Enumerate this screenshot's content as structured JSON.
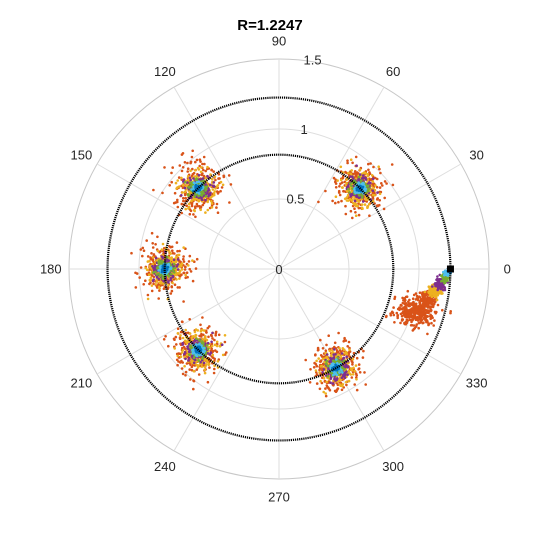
{
  "chart_data": {
    "type": "scatter",
    "subtype": "polar",
    "title": "R=1.2247",
    "theta_ticks": [
      "0",
      "30",
      "60",
      "90",
      "120",
      "150",
      "180",
      "210",
      "240",
      "270",
      "300",
      "330"
    ],
    "theta_tick_values_deg": [
      0,
      30,
      60,
      90,
      120,
      150,
      180,
      210,
      240,
      270,
      300,
      330
    ],
    "r_ticks": [
      "0",
      "0.5",
      "1",
      "1.5"
    ],
    "r_tick_values": [
      0,
      0.5,
      1,
      1.5
    ],
    "rlim": [
      0,
      1.5
    ],
    "grid": true,
    "circles": [
      {
        "r": 0.8165,
        "color": "#000000"
      },
      {
        "r": 1.2247,
        "color": "#000000"
      }
    ],
    "marker": {
      "theta_deg": 0,
      "r": 1.2247,
      "color": "#000000"
    },
    "clusters": [
      {
        "theta_deg": 45,
        "r": 0.8165
      },
      {
        "theta_deg": 135,
        "r": 0.8165
      },
      {
        "theta_deg": 180,
        "r": 0.8165
      },
      {
        "theta_deg": 225,
        "r": 0.8165
      },
      {
        "theta_deg": 300,
        "r": 0.8165
      }
    ],
    "spiral_cluster": {
      "theta_start_deg": 15,
      "theta_end_deg": 343,
      "r": 1.2
    },
    "series_colors": [
      "#d95319",
      "#edb120",
      "#7e2f8e",
      "#77ac30",
      "#4dbeee",
      "#0072bd"
    ]
  }
}
